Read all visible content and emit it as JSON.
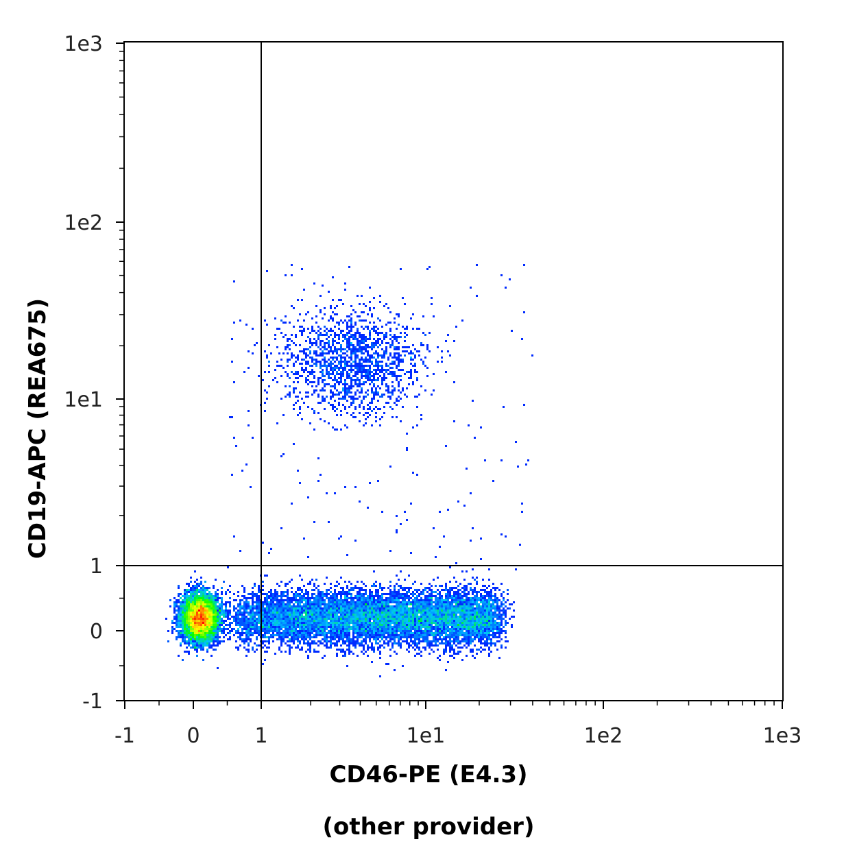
{
  "chart_data": {
    "type": "scatter",
    "title": "",
    "xlabel": "CD46-PE (E4.3)",
    "xlabel_subtitle": "(other provider)",
    "ylabel": "CD19-APC (REA675)",
    "x_scale": "biexponential",
    "y_scale": "biexponential",
    "xlim": [
      -1,
      1000
    ],
    "ylim": [
      -1,
      1000
    ],
    "x_ticks": [
      "-1",
      "0",
      "1",
      "1e1",
      "1e2",
      "1e3"
    ],
    "y_ticks": [
      "-1",
      "0",
      "1",
      "1e1",
      "1e2",
      "1e3"
    ],
    "x_tick_values": [
      -1,
      0,
      1,
      10,
      100,
      1000
    ],
    "y_tick_values": [
      -1,
      0,
      1,
      10,
      100,
      1000
    ],
    "quadrant_gate": {
      "x": 1,
      "y": 1
    },
    "grid": false,
    "colormap": [
      "#0000ff",
      "#00c0ff",
      "#00ff00",
      "#ffff00",
      "#ff0000"
    ],
    "populations": [
      {
        "center": [
          0.1,
          0.2
        ],
        "spread": [
          0.3,
          0.18
        ],
        "count": 9000,
        "density": "high"
      },
      {
        "center": [
          7,
          0.2
        ],
        "spread": [
          1.4,
          0.2
        ],
        "count": 10000,
        "density": "medium",
        "x_range": [
          0.6,
          25
        ]
      },
      {
        "center": [
          3.5,
          16
        ],
        "spread": [
          0.6,
          0.45
        ],
        "count": 1600,
        "density": "low"
      }
    ]
  }
}
